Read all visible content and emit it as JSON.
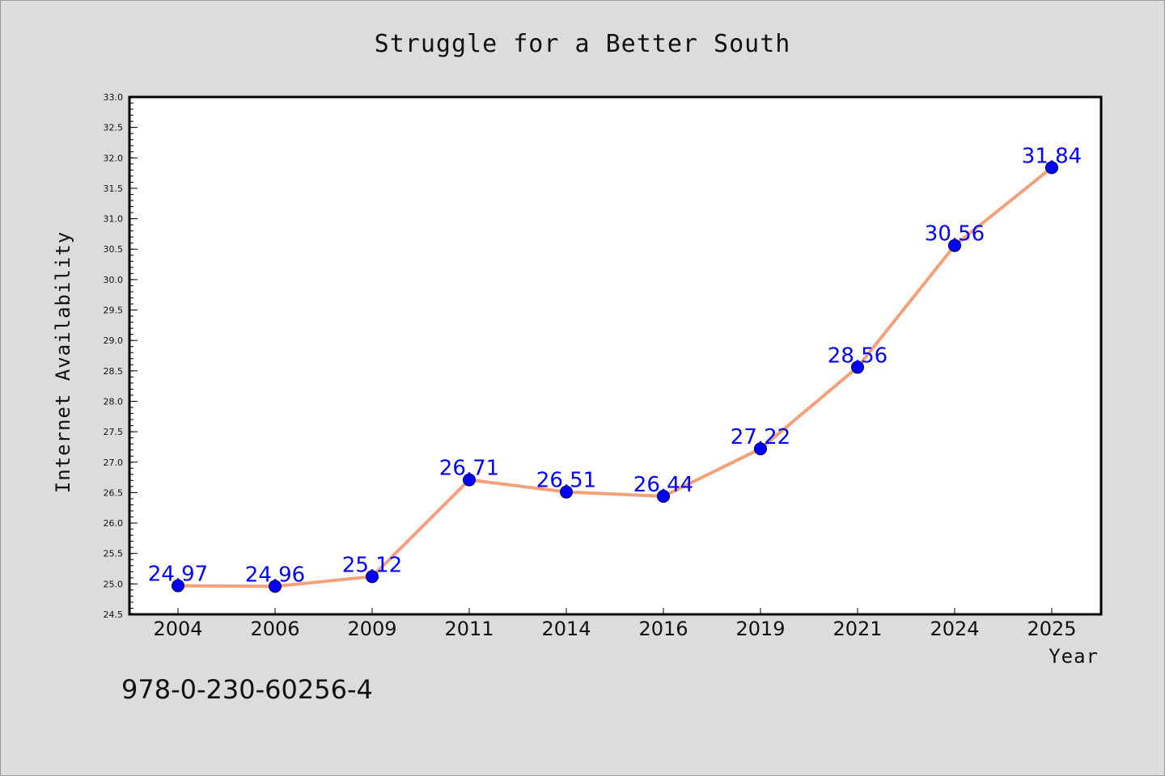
{
  "chart_data": {
    "type": "line",
    "title": "Struggle for a Better South",
    "xlabel": "Year",
    "ylabel": "Internet Availability",
    "categories": [
      "2004",
      "2006",
      "2009",
      "2011",
      "2014",
      "2016",
      "2019",
      "2021",
      "2024",
      "2025"
    ],
    "series": [
      {
        "values": [
          24.97,
          24.96,
          25.12,
          26.71,
          26.51,
          26.44,
          27.22,
          28.56,
          30.56,
          31.84
        ],
        "line_color": "#f4a07a",
        "marker_color": "#0000ff"
      }
    ],
    "data_labels": [
      "24.97",
      "24.96",
      "25.12",
      "26.71",
      "26.51",
      "26.44",
      "27.22",
      "28.56",
      "30.56",
      "31.84"
    ],
    "ylim": [
      24.5,
      33.0
    ],
    "yticks": [
      "24.5",
      "25.0",
      "25.5",
      "26.0",
      "26.5",
      "27.0",
      "27.5",
      "28.0",
      "28.5",
      "29.0",
      "29.5",
      "30.0",
      "30.5",
      "31.0",
      "31.5",
      "32.0",
      "32.5",
      "33.0"
    ],
    "grid": false,
    "legend": "none"
  },
  "footer": {
    "text": "978-0-230-60256-4"
  },
  "colors": {
    "background": "#dcdcdc",
    "plot_background": "#ffffff",
    "axis": "#000000"
  }
}
